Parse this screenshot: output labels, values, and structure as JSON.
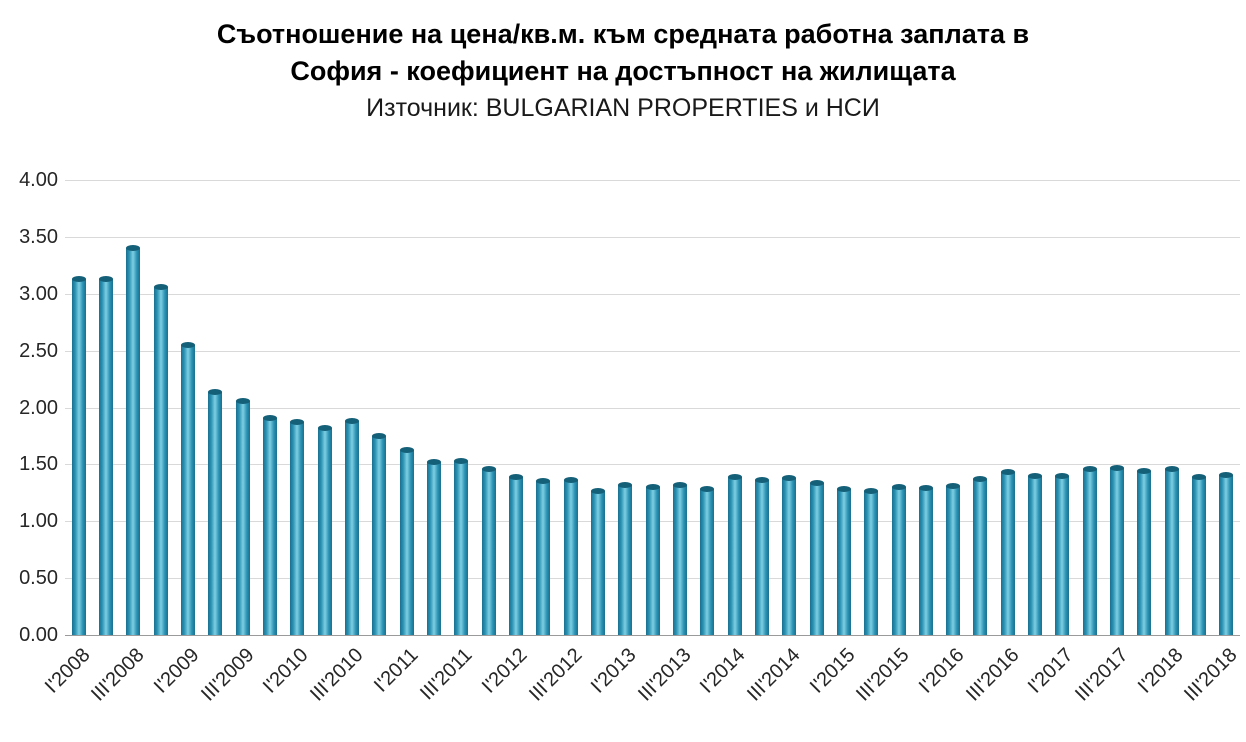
{
  "title": {
    "line1": "Съотношение на цена/кв.м. към средната работна заплата в",
    "line2": "София - коефициент на достъпност на жилищата",
    "subtitle": "Източник: BULGARIAN PROPERTIES и НСИ"
  },
  "chart_data": {
    "type": "bar",
    "title": "Съотношение на цена/кв.м. към средната работна заплата в София - коефициент на достъпност на жилищата",
    "subtitle": "Източник: BULGARIAN PROPERTIES и НСИ",
    "categories": [
      "I'2008",
      "II'2008",
      "III'2008",
      "IV'2008",
      "I'2009",
      "II'2009",
      "III'2009",
      "IV'2009",
      "I'2010",
      "II'2010",
      "III'2010",
      "IV'2010",
      "I'2011",
      "II'2011",
      "III'2011",
      "IV'2011",
      "I'2012",
      "II'2012",
      "III'2012",
      "IV'2012",
      "I'2013",
      "II'2013",
      "III'2013",
      "IV'2013",
      "I'2014",
      "II'2014",
      "III'2014",
      "IV'2014",
      "I'2015",
      "II'2015",
      "III'2015",
      "IV'2015",
      "I'2016",
      "II'2016",
      "III'2016",
      "IV'2016",
      "I'2017",
      "II'2017",
      "III'2017",
      "IV'2017",
      "I'2018",
      "II'2018",
      "III'2018"
    ],
    "values": [
      3.13,
      3.13,
      3.4,
      3.06,
      2.55,
      2.14,
      2.06,
      1.91,
      1.87,
      1.82,
      1.88,
      1.75,
      1.63,
      1.52,
      1.53,
      1.46,
      1.39,
      1.35,
      1.36,
      1.27,
      1.32,
      1.3,
      1.32,
      1.28,
      1.39,
      1.36,
      1.38,
      1.34,
      1.28,
      1.27,
      1.3,
      1.29,
      1.31,
      1.37,
      1.43,
      1.4,
      1.4,
      1.46,
      1.47,
      1.44,
      1.46,
      1.39,
      1.41
    ],
    "x_tick_labels": [
      "I'2008",
      "III'2008",
      "I'2009",
      "III'2009",
      "I'2010",
      "III'2010",
      "I'2011",
      "III'2011",
      "I'2012",
      "III'2012",
      "I'2013",
      "III'2013",
      "I'2014",
      "III'2014",
      "I'2015",
      "III'2015",
      "I'2016",
      "III'2016",
      "I'2017",
      "III'2017",
      "I'2018",
      "III'2018"
    ],
    "label_every": 2,
    "y_tick_labels": [
      "0.00",
      "0.50",
      "1.00",
      "1.50",
      "2.00",
      "2.50",
      "3.00",
      "3.50",
      "4.00"
    ],
    "ylim": [
      0,
      4
    ],
    "ytick_step": 0.5,
    "xlabel": "",
    "ylabel": "",
    "grid": true,
    "legend": "none",
    "bar_color": "#2a91b2",
    "bar_gradient_edge": "#19708e",
    "bar_gradient_center": "#7ecfe3",
    "bar_cap_color": "#156079",
    "gridline_color": "#d9d9d9",
    "axis_line_color": "#9a9a9a",
    "tick_label_color": "#262626"
  }
}
